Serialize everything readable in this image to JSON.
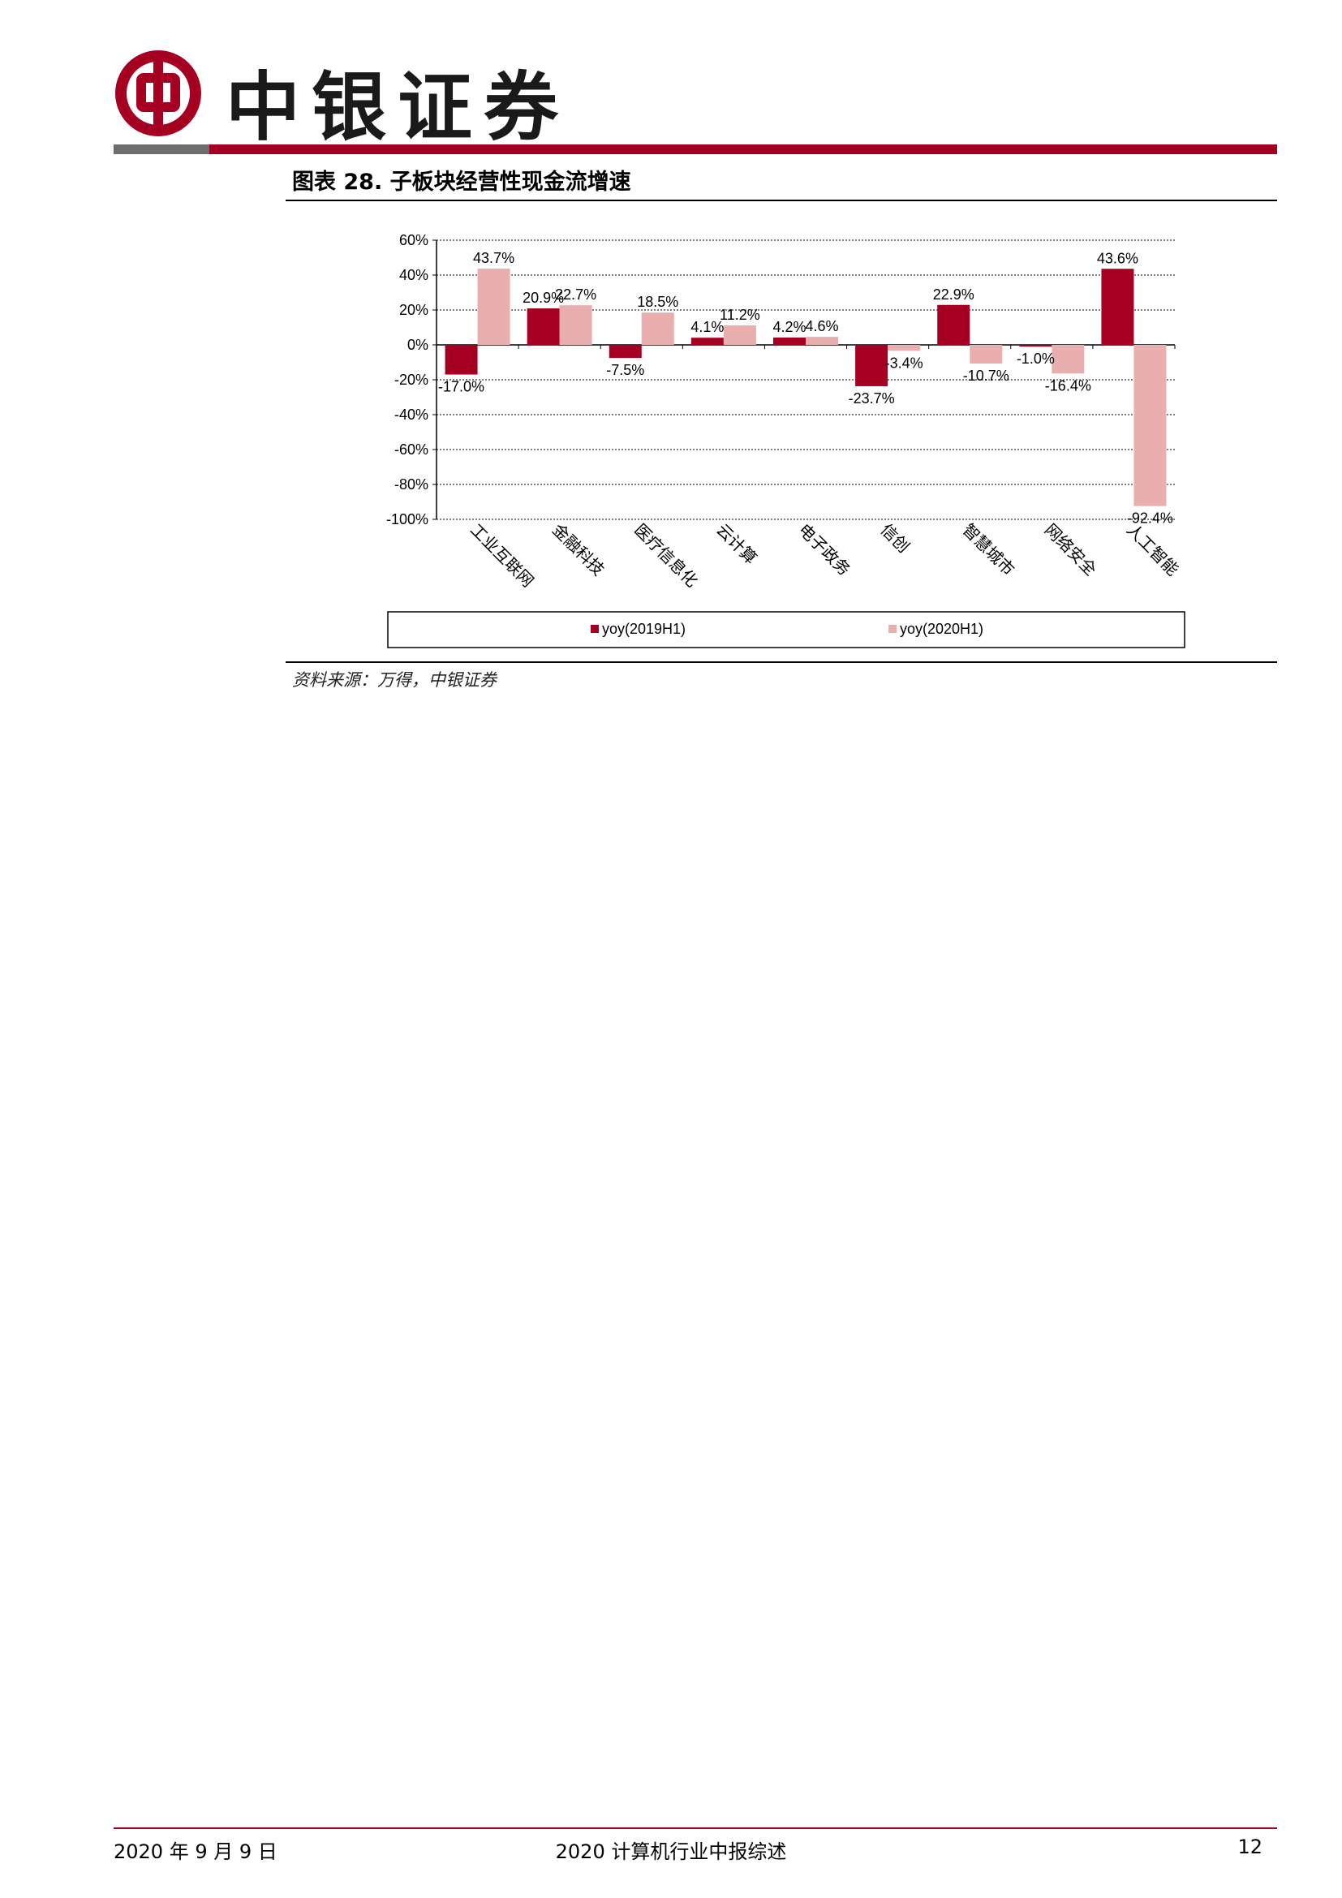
{
  "header": {
    "brand_name": "中银证券",
    "colors": {
      "brand_red": "#a50021",
      "header_gray": "#6d6d6d"
    }
  },
  "figure": {
    "title": "图表 28. 子板块经营性现金流增速",
    "source": "资料来源：万得，中银证券"
  },
  "chart_data": {
    "type": "bar",
    "categories": [
      "工业互联网",
      "金融科技",
      "医疗信息化",
      "云计算",
      "电子政务",
      "信创",
      "智慧城市",
      "网络安全",
      "人工智能"
    ],
    "series": [
      {
        "name": "yoy(2019H1)",
        "color": "#a50021",
        "values": [
          -17.0,
          20.9,
          -7.5,
          4.1,
          4.2,
          -23.7,
          22.9,
          -1.0,
          43.6
        ],
        "labels": [
          "-17.0%",
          "20.9%",
          "-7.5%",
          "4.1%",
          "4.2%",
          "-23.7%",
          "22.9%",
          "-1.0%",
          "43.6%"
        ]
      },
      {
        "name": "yoy(2020H1)",
        "color": "#e9aeae",
        "values": [
          43.7,
          22.7,
          18.5,
          11.2,
          4.6,
          -3.4,
          -10.7,
          -16.4,
          -92.4
        ],
        "labels": [
          "43.7%",
          "22.7%",
          "18.5%",
          "11.2%",
          "4.6%",
          "-3.4%",
          "-10.7%",
          "-16.4%",
          "-92.4%"
        ]
      }
    ],
    "yticks": [
      "60%",
      "40%",
      "20%",
      "0%",
      "-20%",
      "-40%",
      "-60%",
      "-80%",
      "-100%"
    ],
    "ylim": [
      -100,
      60
    ],
    "grid": true,
    "legend": "bottom"
  },
  "footer": {
    "date": "2020 年 9 月 9 日",
    "doc_title": "2020 计算机行业中报综述",
    "page": "12"
  }
}
